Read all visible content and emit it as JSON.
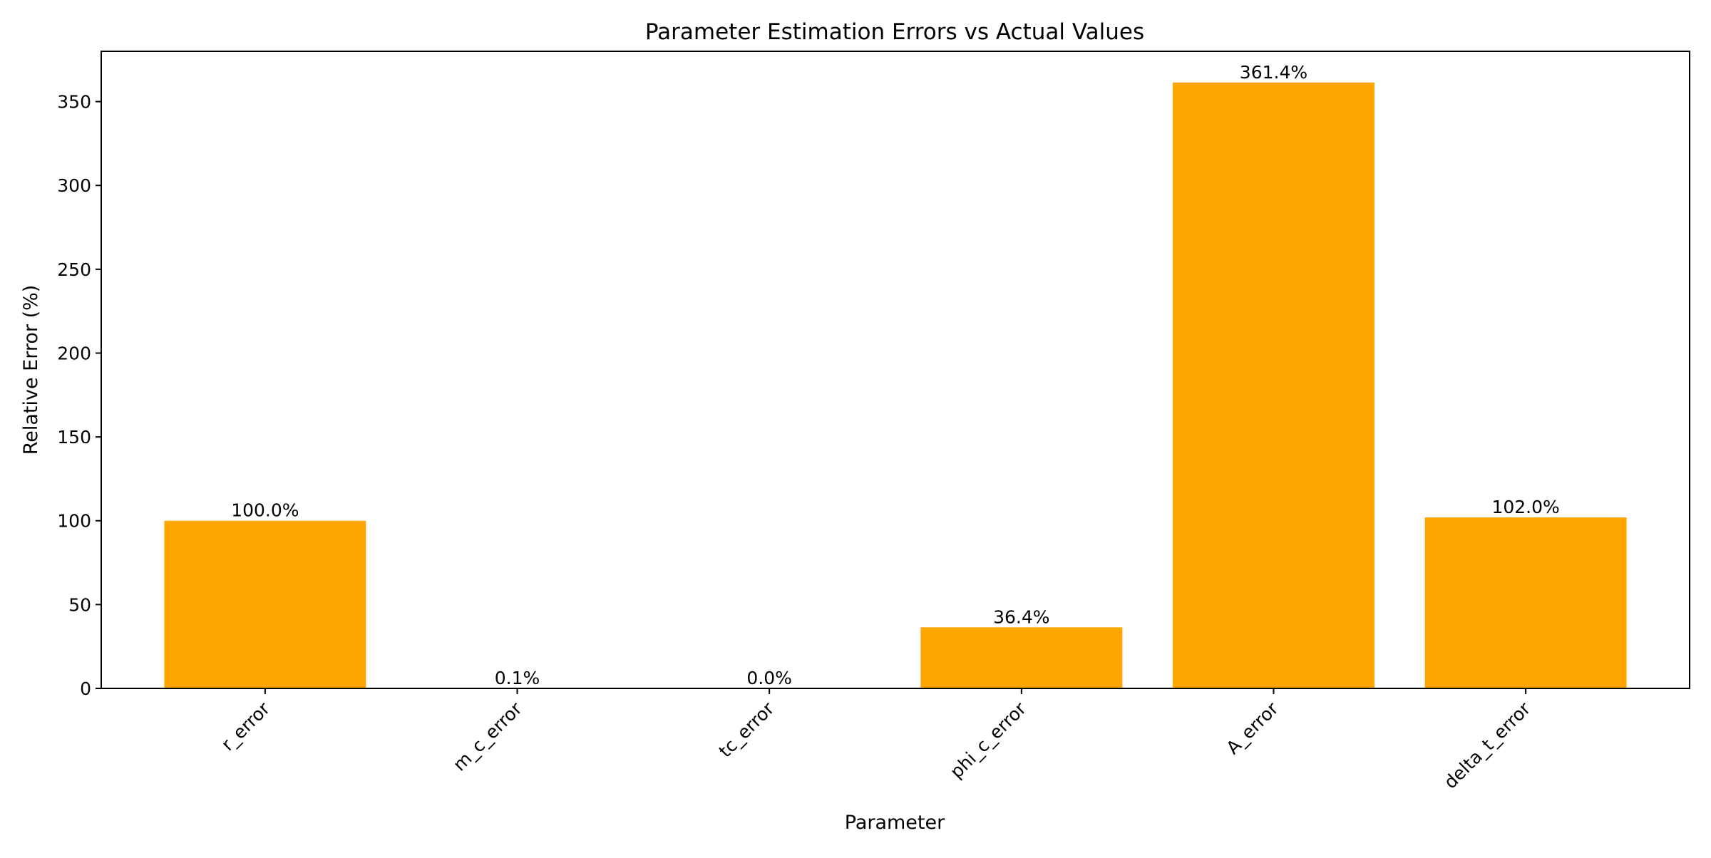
{
  "chart_data": {
    "type": "bar",
    "title": "Parameter Estimation Errors vs Actual Values",
    "xlabel": "Parameter",
    "ylabel": "Relative Error (%)",
    "categories": [
      "r_error",
      "m_c_error",
      "tc_error",
      "phi_c_error",
      "A_error",
      "delta_t_error"
    ],
    "values": [
      100.0,
      0.1,
      0.0,
      36.4,
      361.4,
      102.0
    ],
    "data_labels": [
      "100.0%",
      "0.1%",
      "0.0%",
      "36.4%",
      "361.4%",
      "102.0%"
    ],
    "ylim": [
      0,
      380
    ],
    "yticks": [
      0,
      50,
      100,
      150,
      200,
      250,
      300,
      350
    ],
    "ytick_labels": [
      "0",
      "50",
      "100",
      "150",
      "200",
      "250",
      "300",
      "350"
    ],
    "bar_color": "#FFA500",
    "grid": false,
    "legend": "none",
    "xtick_rotation": 45
  }
}
